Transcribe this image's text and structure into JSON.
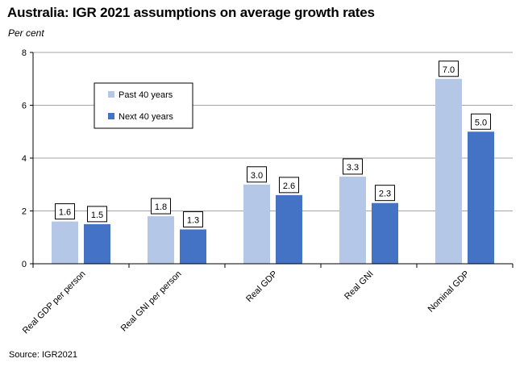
{
  "title": "Australia: IGR 2021 assumptions on average growth rates",
  "source": "Source: IGR2021",
  "colors": {
    "past": "#b4c7e7",
    "next": "#4472c4",
    "grid": "#a6a6a6",
    "axis": "#000000"
  },
  "chart_data": {
    "type": "bar",
    "title": "Australia: IGR 2021 assumptions on average growth rates",
    "xlabel": "",
    "ylabel": "Per cent",
    "ylim": [
      0,
      8
    ],
    "yticks": [
      0,
      2,
      4,
      6,
      8
    ],
    "grid": true,
    "legend_position": "top-left",
    "categories": [
      "Real GDP per person",
      "Real GNI per person",
      "Real GDP",
      "Real GNI",
      "Nominal GDP"
    ],
    "series": [
      {
        "name": "Past 40 years",
        "values": [
          1.6,
          1.8,
          3.0,
          3.3,
          7.0
        ],
        "labels": [
          "1.6",
          "1.8",
          "3.0",
          "3.3",
          "7.0"
        ]
      },
      {
        "name": "Next 40 years",
        "values": [
          1.5,
          1.3,
          2.6,
          2.3,
          5.0
        ],
        "labels": [
          "1.5",
          "1.3",
          "2.6",
          "2.3",
          "5.0"
        ]
      }
    ]
  }
}
